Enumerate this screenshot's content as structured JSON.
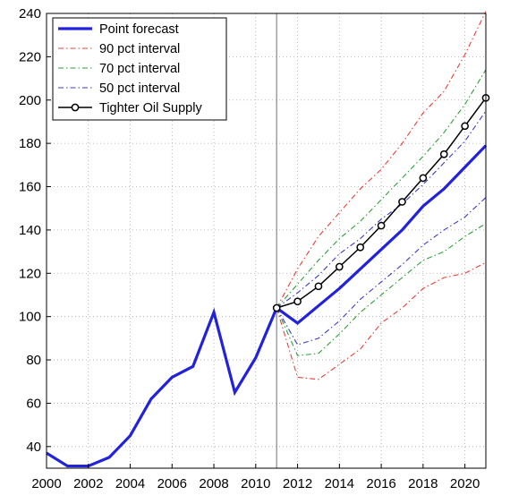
{
  "chart_data": {
    "type": "line",
    "title": "",
    "xlabel": "",
    "ylabel": "",
    "xlim": [
      2000,
      2021
    ],
    "ylim": [
      30,
      240
    ],
    "grid": true,
    "legend_position": "top-left",
    "vertical_marker_x": 2011,
    "x_ticks": [
      "2000",
      "2002",
      "2004",
      "2006",
      "2008",
      "2010",
      "2012",
      "2014",
      "2016",
      "2018",
      "2020"
    ],
    "y_ticks": [
      "40",
      "60",
      "80",
      "100",
      "120",
      "140",
      "160",
      "180",
      "200",
      "220",
      "240"
    ],
    "series": [
      {
        "name": "Point forecast",
        "color": "#2222dd",
        "style": "solid-thick",
        "x": [
          2000,
          2001,
          2002,
          2003,
          2004,
          2005,
          2006,
          2007,
          2008,
          2009,
          2010,
          2011,
          2012,
          2013,
          2014,
          2015,
          2016,
          2017,
          2018,
          2019,
          2020,
          2021
        ],
        "y": [
          37,
          31,
          31,
          35,
          45,
          62,
          72,
          77,
          102,
          65,
          81,
          104,
          97,
          105,
          113,
          122,
          131,
          140,
          151,
          159,
          169,
          179
        ]
      },
      {
        "name": "90 pct interval",
        "color": "#e8403a",
        "style": "dashdot",
        "bands": [
          {
            "x": [
              2011,
              2012,
              2013,
              2014,
              2015,
              2016,
              2017,
              2018,
              2019,
              2020,
              2021
            ],
            "y": [
              104,
              122,
              137,
              148,
              159,
              168,
              180,
              194,
              204,
              221,
              241
            ]
          },
          {
            "x": [
              2011,
              2012,
              2013,
              2014,
              2015,
              2016,
              2017,
              2018,
              2019,
              2020,
              2021
            ],
            "y": [
              104,
              72,
              71,
              78,
              85,
              97,
              104,
              113,
              118,
              120,
              125
            ]
          }
        ]
      },
      {
        "name": "70 pct interval",
        "color": "#2e9e3a",
        "style": "dashdot",
        "bands": [
          {
            "x": [
              2011,
              2012,
              2013,
              2014,
              2015,
              2016,
              2017,
              2018,
              2019,
              2020,
              2021
            ],
            "y": [
              104,
              115,
              126,
              136,
              144,
              154,
              164,
              174,
              185,
              198,
              214
            ]
          },
          {
            "x": [
              2011,
              2012,
              2013,
              2014,
              2015,
              2016,
              2017,
              2018,
              2019,
              2020,
              2021
            ],
            "y": [
              104,
              82,
              83,
              92,
              102,
              110,
              118,
              126,
              130,
              137,
              143
            ]
          }
        ]
      },
      {
        "name": "50 pct interval",
        "color": "#3a3acc",
        "style": "dashdot",
        "bands": [
          {
            "x": [
              2011,
              2012,
              2013,
              2014,
              2015,
              2016,
              2017,
              2018,
              2019,
              2020,
              2021
            ],
            "y": [
              104,
              111,
              119,
              129,
              136,
              145,
              152,
              161,
              171,
              181,
              195
            ]
          },
          {
            "x": [
              2011,
              2012,
              2013,
              2014,
              2015,
              2016,
              2017,
              2018,
              2019,
              2020,
              2021
            ],
            "y": [
              104,
              87,
              90,
              98,
              108,
              116,
              124,
              133,
              140,
              146,
              155
            ]
          }
        ]
      },
      {
        "name": "Tighter Oil Supply",
        "color": "#000000",
        "style": "solid-circle-markers",
        "x": [
          2011,
          2012,
          2013,
          2014,
          2015,
          2016,
          2017,
          2018,
          2019,
          2020,
          2021
        ],
        "y": [
          104,
          107,
          114,
          123,
          132,
          142,
          153,
          164,
          175,
          188,
          201
        ]
      }
    ]
  }
}
